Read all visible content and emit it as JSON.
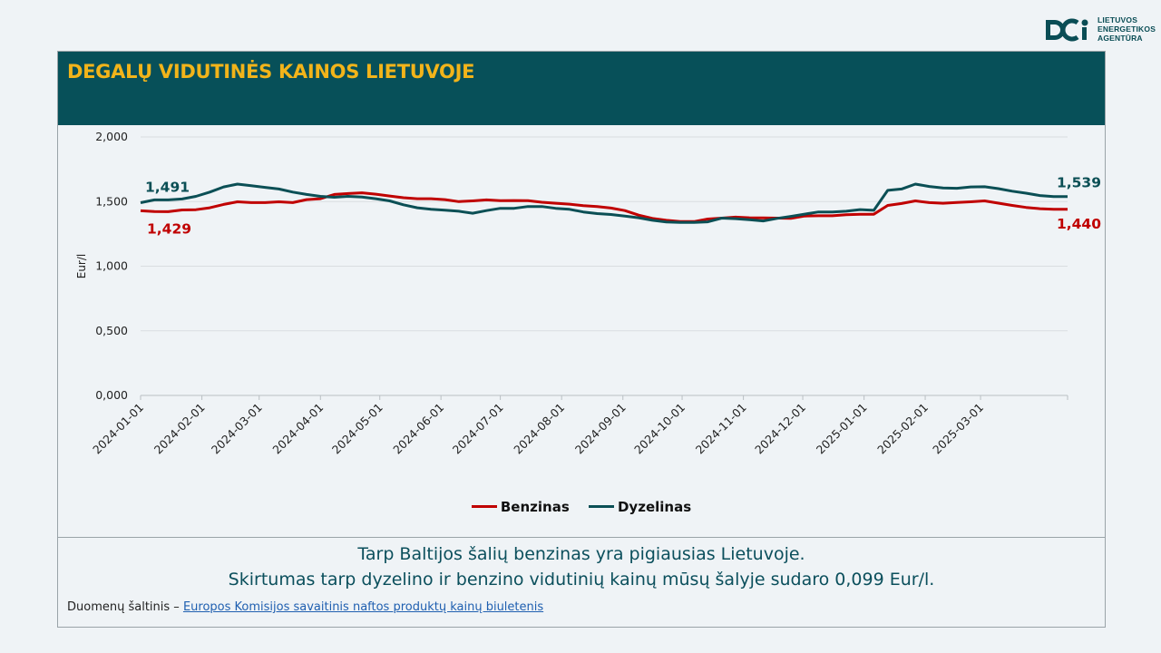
{
  "logo": {
    "lines": [
      "LIETUVOS",
      "ENERGETIKOS",
      "AGENTŪRA"
    ],
    "color": "#0a4d55"
  },
  "header": {
    "title": "DEGALŲ VIDUTINĖS KAINOS LIETUVOJE",
    "bg": "#075059",
    "title_color": "#f2b41a"
  },
  "summary": {
    "line1": "Tarp Baltijos šalių benzinas yra pigiausias Lietuvoje.",
    "line2": "Skirtumas tarp dyzelino ir benzino vidutinių kainų mūsų šalyje sudaro 0,099 Eur/l."
  },
  "source": {
    "label": "Duomenų šaltinis – ",
    "link": "Europos Komisijos savaitinis naftos produktų kainų biuletenis"
  },
  "chart_data": {
    "type": "line",
    "ylabel": "Eur/l",
    "ylim": [
      0,
      2
    ],
    "yticks": [
      "0,000",
      "0,500",
      "1,000",
      "1,500",
      "2,000"
    ],
    "xticks": [
      "2024-01-01",
      "2024-02-01",
      "2024-03-01",
      "2024-04-01",
      "2024-05-01",
      "2024-06-01",
      "2024-07-01",
      "2024-08-01",
      "2024-09-01",
      "2024-10-01",
      "2024-11-01",
      "2024-12-01",
      "2025-01-01",
      "2025-02-01",
      "2025-03-01"
    ],
    "grid": true,
    "legend_position": "bottom",
    "series": [
      {
        "name": "Benzinas",
        "color": "#c00000",
        "start_label": "1,429",
        "end_label": "1,440",
        "values": [
          1.429,
          1.423,
          1.422,
          1.435,
          1.437,
          1.452,
          1.478,
          1.498,
          1.492,
          1.492,
          1.498,
          1.492,
          1.515,
          1.522,
          1.555,
          1.562,
          1.568,
          1.557,
          1.543,
          1.53,
          1.522,
          1.522,
          1.515,
          1.5,
          1.505,
          1.513,
          1.507,
          1.508,
          1.507,
          1.495,
          1.487,
          1.48,
          1.468,
          1.462,
          1.45,
          1.43,
          1.395,
          1.37,
          1.355,
          1.345,
          1.345,
          1.365,
          1.372,
          1.38,
          1.375,
          1.373,
          1.372,
          1.37,
          1.388,
          1.39,
          1.39,
          1.398,
          1.402,
          1.402,
          1.47,
          1.485,
          1.505,
          1.492,
          1.487,
          1.493,
          1.498,
          1.505,
          1.488,
          1.47,
          1.455,
          1.445,
          1.44,
          1.44
        ]
      },
      {
        "name": "Dyzelinas",
        "color": "#0b4f55",
        "start_label": "1,491",
        "end_label": "1,539",
        "values": [
          1.491,
          1.513,
          1.513,
          1.52,
          1.54,
          1.573,
          1.613,
          1.635,
          1.623,
          1.61,
          1.597,
          1.573,
          1.555,
          1.54,
          1.533,
          1.54,
          1.535,
          1.522,
          1.505,
          1.475,
          1.452,
          1.44,
          1.433,
          1.425,
          1.41,
          1.43,
          1.448,
          1.448,
          1.462,
          1.462,
          1.448,
          1.44,
          1.42,
          1.407,
          1.4,
          1.388,
          1.375,
          1.355,
          1.342,
          1.338,
          1.338,
          1.343,
          1.372,
          1.368,
          1.36,
          1.35,
          1.37,
          1.385,
          1.403,
          1.42,
          1.42,
          1.425,
          1.438,
          1.432,
          1.587,
          1.597,
          1.635,
          1.617,
          1.605,
          1.603,
          1.613,
          1.615,
          1.6,
          1.58,
          1.565,
          1.547,
          1.539,
          1.539
        ]
      }
    ]
  }
}
